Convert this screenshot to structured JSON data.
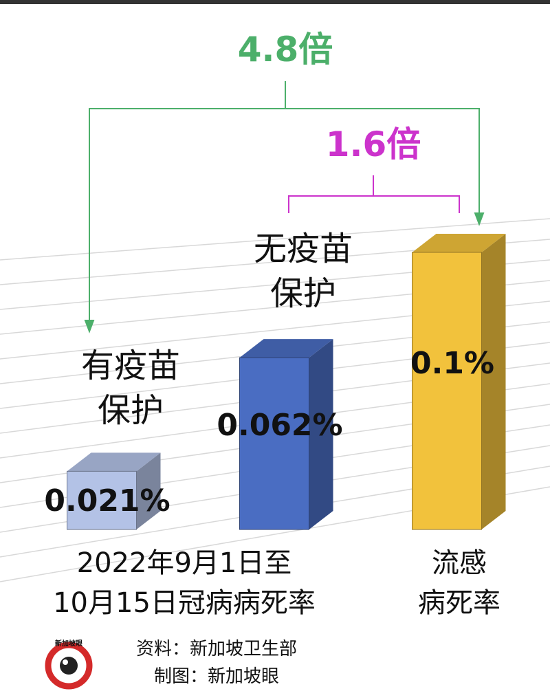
{
  "chart_data": {
    "type": "bar3d",
    "categories": [
      "有疫苗\n保护",
      "无疫苗\n保护",
      null
    ],
    "values": [
      0.021,
      0.062,
      0.1
    ],
    "value_labels": [
      "0.021%",
      "0.062%",
      "0.1%"
    ],
    "colors": [
      "#b3c2e6",
      "#4a6dc2",
      "#f2c23c"
    ],
    "group_labels": [
      "2022年9月1日至\n10月15日冠病病死率",
      "流感\n病死率"
    ],
    "annotations": [
      {
        "text": "4.8倍",
        "color": "#4caf6a"
      },
      {
        "text": "1.6倍",
        "color": "#cc33cc"
      }
    ]
  },
  "source": [
    "资料：新加坡卫生部",
    "制图：新加坡眼"
  ],
  "logo": "新加坡眼"
}
